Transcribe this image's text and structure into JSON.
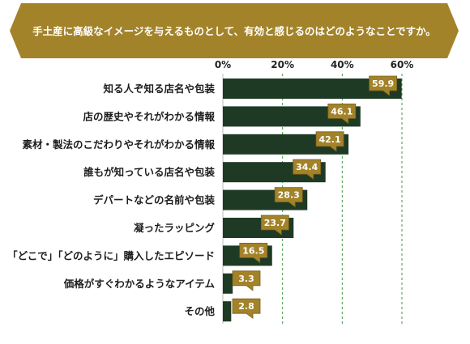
{
  "chart_data": {
    "type": "bar",
    "orientation": "horizontal",
    "title": "手土産に高級なイメージを与えるものとして、有効と感じるのはどのようなことですか。",
    "categories": [
      "知る人ぞ知る店名や包装",
      "店の歴史やそれがわかる情報",
      "素材・製法のこだわりやそれがわかる情報",
      "誰もが知っている店名や包装",
      "デパートなどの名前や包装",
      "凝ったラッピング",
      "「どこで」「どのように」購入したエピソード",
      "価格がすぐわかるようなアイテム",
      "その他"
    ],
    "values": [
      59.9,
      46.1,
      42.1,
      34.4,
      28.3,
      23.7,
      16.5,
      3.3,
      2.8
    ],
    "value_labels": [
      "59.9",
      "46.1",
      "42.1",
      "34.4",
      "28.3",
      "23.7",
      "16.5",
      "3.3",
      "2.8"
    ],
    "xticks": [
      "0%",
      "20%",
      "40%",
      "60%"
    ],
    "xtick_values": [
      0,
      20,
      40,
      60
    ],
    "xlim": [
      0,
      60
    ],
    "grid": "vertical-dashed",
    "colors": {
      "bar": "#1f3a24",
      "gold": "#a3832a",
      "gold_dark": "#7a5f1a",
      "grid": "#3f9a3f",
      "banner": "#a3832a"
    }
  }
}
